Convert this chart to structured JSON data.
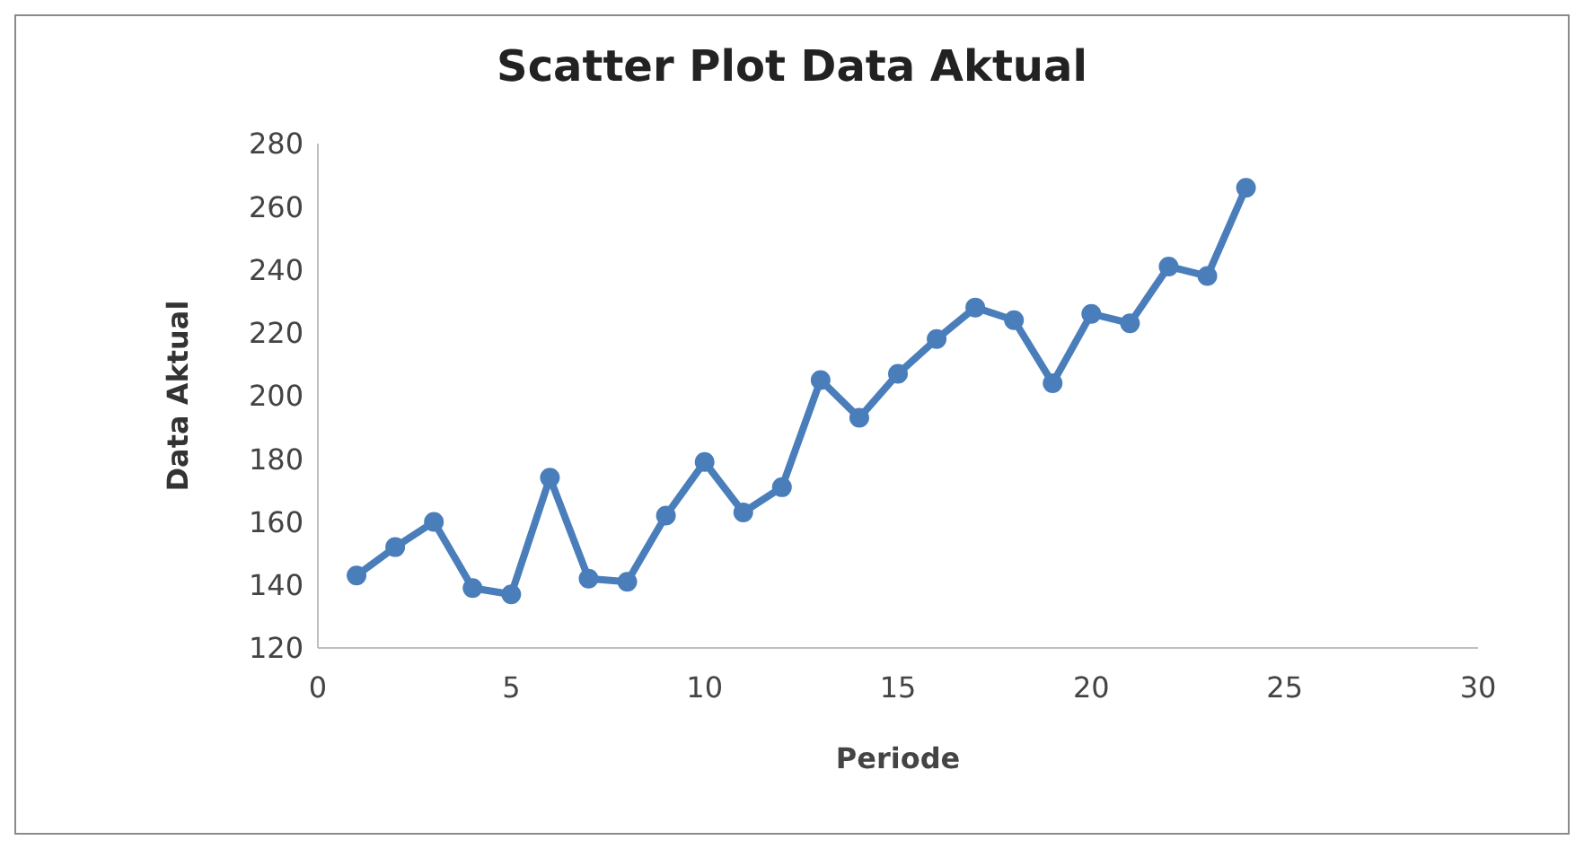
{
  "chart_data": {
    "type": "line",
    "title": "Scatter Plot Data Aktual",
    "xlabel": "Periode",
    "ylabel": "Data Aktual",
    "x": [
      1,
      2,
      3,
      4,
      5,
      6,
      7,
      8,
      9,
      10,
      11,
      12,
      13,
      14,
      15,
      16,
      17,
      18,
      19,
      20,
      21,
      22,
      23,
      24
    ],
    "series": [
      {
        "color": "#4a7ebb",
        "values": [
          143,
          152,
          160,
          139,
          137,
          174,
          142,
          141,
          162,
          179,
          163,
          171,
          205,
          193,
          207,
          218,
          228,
          224,
          204,
          226,
          223,
          241,
          238,
          266
        ]
      }
    ],
    "xlim": [
      0,
      30
    ],
    "xticks": [
      0,
      5,
      10,
      15,
      20,
      25,
      30
    ],
    "ylim": [
      120,
      280
    ],
    "yticks": [
      120,
      140,
      160,
      180,
      200,
      220,
      240,
      260,
      280
    ],
    "grid": false,
    "legend": false,
    "marker": "circle",
    "line_style": "solid"
  }
}
